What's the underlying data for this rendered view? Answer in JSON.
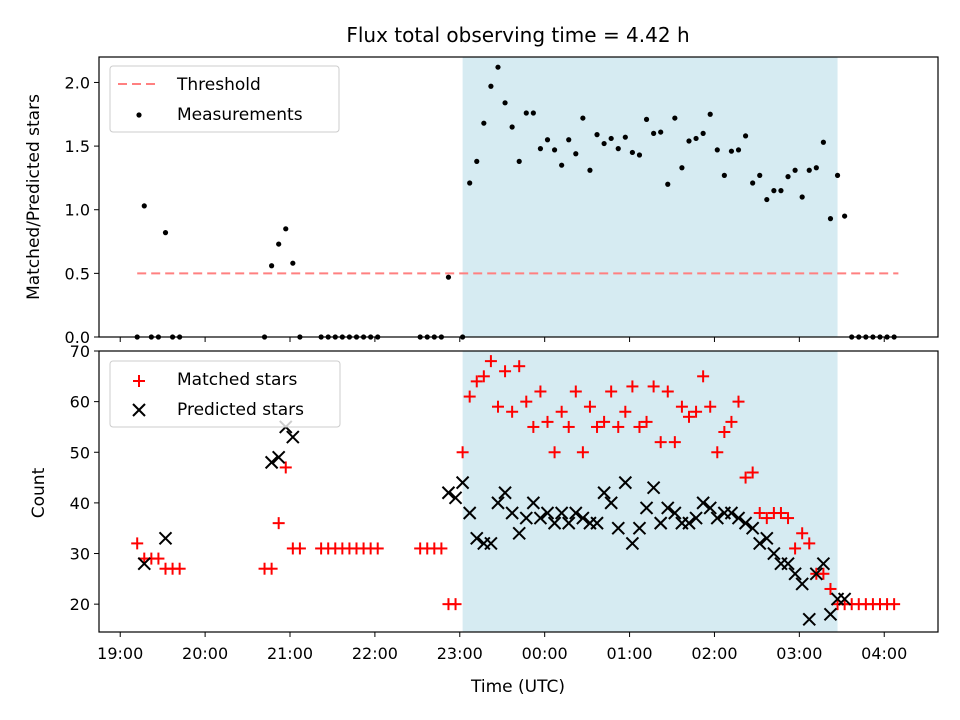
{
  "chart_data": [
    {
      "type": "scatter",
      "title": "Flux total observing time = 4.42 h",
      "ylabel": "Matched/Predicted stars",
      "xlabel": "",
      "ylim": [
        0,
        2.2
      ],
      "yticks": [
        "0.0",
        "0.5",
        "1.0",
        "1.5",
        "2.0"
      ],
      "legend_position": "top-left",
      "threshold": {
        "name": "Threshold",
        "value": 0.5,
        "x_range": [
          "19:12",
          "04:10"
        ],
        "color": "#ff8080",
        "style": "dashed"
      },
      "highlight_span": {
        "x_range": [
          "23:02",
          "03:27"
        ],
        "color": "#add8e6"
      },
      "series": [
        {
          "name": "Measurements",
          "color": "#000000",
          "x": [
            "19:12",
            "19:17",
            "19:22",
            "19:27",
            "19:32",
            "19:37",
            "19:42",
            "20:42",
            "20:47",
            "20:52",
            "20:57",
            "21:02",
            "21:07",
            "21:22",
            "21:27",
            "21:32",
            "21:37",
            "21:42",
            "21:47",
            "21:52",
            "21:57",
            "22:02",
            "22:32",
            "22:37",
            "22:42",
            "22:47",
            "22:52",
            "23:02",
            "23:07",
            "23:12",
            "23:17",
            "23:22",
            "23:27",
            "23:32",
            "23:37",
            "23:42",
            "23:47",
            "23:52",
            "23:57",
            "00:02",
            "00:07",
            "00:12",
            "00:17",
            "00:22",
            "00:27",
            "00:32",
            "00:37",
            "00:42",
            "00:47",
            "00:52",
            "00:57",
            "01:02",
            "01:07",
            "01:12",
            "01:17",
            "01:22",
            "01:27",
            "01:32",
            "01:37",
            "01:42",
            "01:47",
            "01:52",
            "01:57",
            "02:02",
            "02:07",
            "02:12",
            "02:17",
            "02:22",
            "02:27",
            "02:32",
            "02:37",
            "02:42",
            "02:47",
            "02:52",
            "02:57",
            "03:02",
            "03:07",
            "03:12",
            "03:17",
            "03:22",
            "03:27",
            "03:32",
            "03:37",
            "03:42",
            "03:47",
            "03:52",
            "03:57",
            "04:02",
            "04:07"
          ],
          "y": [
            0,
            1.03,
            0,
            0,
            0.82,
            0,
            0,
            0,
            0.56,
            0.73,
            0.85,
            0.58,
            0,
            0,
            0,
            0,
            0,
            0,
            0,
            0,
            0,
            0,
            0,
            0,
            0,
            0,
            0.47,
            0,
            1.21,
            1.38,
            1.68,
            1.97,
            2.12,
            1.84,
            1.65,
            1.38,
            1.76,
            1.76,
            1.48,
            1.55,
            1.47,
            1.35,
            1.55,
            1.44,
            1.72,
            1.31,
            1.59,
            1.52,
            1.56,
            1.48,
            1.57,
            1.45,
            1.43,
            1.71,
            1.6,
            1.61,
            1.2,
            1.72,
            1.33,
            1.54,
            1.56,
            1.6,
            1.75,
            1.47,
            1.27,
            1.46,
            1.47,
            1.58,
            1.21,
            1.27,
            1.08,
            1.15,
            1.15,
            1.26,
            1.31,
            1.1,
            1.31,
            1.33,
            1.53,
            0.93,
            1.27,
            0.95,
            0,
            0,
            0,
            0,
            0,
            0,
            0
          ]
        }
      ]
    },
    {
      "type": "scatter",
      "title": "",
      "ylabel": "Count",
      "xlabel": "Time (UTC)",
      "ylim": [
        14.5,
        70
      ],
      "yticks": [
        "20",
        "30",
        "40",
        "50",
        "60",
        "70"
      ],
      "xticks": [
        "19:00",
        "20:00",
        "21:00",
        "22:00",
        "23:00",
        "00:00",
        "01:00",
        "02:00",
        "03:00",
        "04:00"
      ],
      "legend_position": "top-left",
      "highlight_span": {
        "x_range": [
          "23:02",
          "03:27"
        ],
        "color": "#add8e6"
      },
      "series": [
        {
          "name": "Matched stars",
          "color": "#ff0000",
          "marker": "plus",
          "x": [
            "19:12",
            "19:17",
            "19:22",
            "19:27",
            "19:32",
            "19:37",
            "19:42",
            "20:42",
            "20:47",
            "20:52",
            "20:57",
            "21:02",
            "21:07",
            "21:22",
            "21:27",
            "21:32",
            "21:37",
            "21:42",
            "21:47",
            "21:52",
            "21:57",
            "22:02",
            "22:32",
            "22:37",
            "22:42",
            "22:47",
            "22:52",
            "22:57",
            "23:02",
            "23:07",
            "23:12",
            "23:17",
            "23:22",
            "23:27",
            "23:32",
            "23:37",
            "23:42",
            "23:47",
            "23:52",
            "23:57",
            "00:02",
            "00:07",
            "00:12",
            "00:17",
            "00:22",
            "00:27",
            "00:32",
            "00:37",
            "00:42",
            "00:47",
            "00:52",
            "00:57",
            "01:02",
            "01:07",
            "01:12",
            "01:17",
            "01:22",
            "01:27",
            "01:32",
            "01:37",
            "01:42",
            "01:47",
            "01:52",
            "01:57",
            "02:02",
            "02:07",
            "02:12",
            "02:17",
            "02:22",
            "02:27",
            "02:32",
            "02:37",
            "02:42",
            "02:47",
            "02:52",
            "02:57",
            "03:02",
            "03:07",
            "03:12",
            "03:17",
            "03:22",
            "03:27",
            "03:32",
            "03:37",
            "03:42",
            "03:47",
            "03:52",
            "03:57",
            "04:02",
            "04:07"
          ],
          "y": [
            32,
            29,
            29,
            29,
            27,
            27,
            27,
            27,
            27,
            36,
            47,
            31,
            31,
            31,
            31,
            31,
            31,
            31,
            31,
            31,
            31,
            31,
            31,
            31,
            31,
            31,
            20,
            20,
            50,
            61,
            64,
            65,
            68,
            59,
            66,
            58,
            67,
            60,
            55,
            62,
            56,
            50,
            58,
            55,
            62,
            50,
            59,
            55,
            56,
            62,
            55,
            58,
            63,
            55,
            56,
            63,
            52,
            62,
            52,
            59,
            57,
            58,
            65,
            59,
            50,
            54,
            56,
            60,
            45,
            46,
            38,
            37,
            38,
            38,
            37,
            31,
            34,
            32,
            26,
            26,
            23,
            20,
            20,
            20,
            20,
            20,
            20,
            20,
            20,
            20
          ]
        },
        {
          "name": "Predicted stars",
          "color": "#000000",
          "marker": "x",
          "x": [
            "19:17",
            "19:32",
            "20:47",
            "20:52",
            "20:57",
            "21:02",
            "22:52",
            "22:57",
            "23:02",
            "23:07",
            "23:12",
            "23:17",
            "23:22",
            "23:27",
            "23:32",
            "23:37",
            "23:42",
            "23:47",
            "23:52",
            "23:57",
            "00:02",
            "00:07",
            "00:12",
            "00:17",
            "00:22",
            "00:27",
            "00:32",
            "00:37",
            "00:42",
            "00:47",
            "00:52",
            "00:57",
            "01:02",
            "01:07",
            "01:12",
            "01:17",
            "01:22",
            "01:27",
            "01:32",
            "01:37",
            "01:42",
            "01:47",
            "01:52",
            "01:57",
            "02:02",
            "02:07",
            "02:12",
            "02:17",
            "02:22",
            "02:27",
            "02:32",
            "02:37",
            "02:42",
            "02:47",
            "02:52",
            "02:57",
            "03:02",
            "03:07",
            "03:12",
            "03:17",
            "03:22",
            "03:27",
            "03:32"
          ],
          "y": [
            28,
            33,
            48,
            49,
            55,
            53,
            42,
            41,
            44,
            38,
            33,
            32,
            32,
            40,
            42,
            38,
            34,
            37,
            40,
            37,
            38,
            36,
            38,
            36,
            38,
            37,
            36,
            36,
            42,
            40,
            35,
            44,
            32,
            35,
            39,
            43,
            36,
            39,
            38,
            36,
            36,
            37,
            40,
            39,
            37,
            38,
            38,
            37,
            36,
            35,
            32,
            33,
            30,
            28,
            28,
            26,
            24,
            17,
            26,
            28,
            18,
            21,
            21
          ]
        }
      ]
    }
  ]
}
